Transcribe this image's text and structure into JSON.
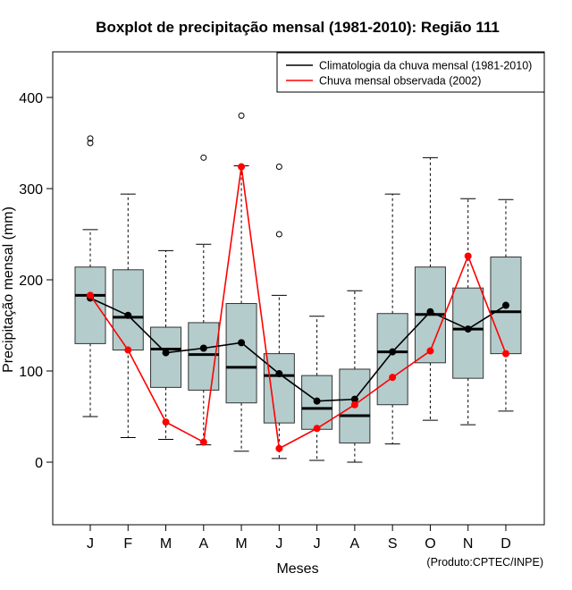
{
  "chart_data": {
    "type": "boxplot",
    "title": "Boxplot de precipitação mensal (1981-2010): Região 111",
    "xlabel": "Meses",
    "ylabel": "Precipitação mensal (mm)",
    "credit": "(Produto:CPTEC/INPE)",
    "ylim": [
      -70,
      450
    ],
    "yticks": [
      0,
      100,
      200,
      300,
      400
    ],
    "categories": [
      "J",
      "F",
      "M",
      "A",
      "M",
      "J",
      "J",
      "A",
      "S",
      "O",
      "N",
      "D"
    ],
    "boxes": [
      {
        "min": 50,
        "q1": 130,
        "median": 183,
        "q3": 214,
        "max": 255,
        "outliers": [
          350,
          355
        ]
      },
      {
        "min": 27,
        "q1": 123,
        "median": 159,
        "q3": 211,
        "max": 294,
        "outliers": []
      },
      {
        "min": 25,
        "q1": 82,
        "median": 124,
        "q3": 148,
        "max": 232,
        "outliers": []
      },
      {
        "min": 19,
        "q1": 79,
        "median": 118,
        "q3": 153,
        "max": 239,
        "outliers": [
          334
        ]
      },
      {
        "min": 12,
        "q1": 65,
        "median": 104,
        "q3": 174,
        "max": 325,
        "outliers": [
          380
        ]
      },
      {
        "min": 4,
        "q1": 43,
        "median": 95,
        "q3": 119,
        "max": 183,
        "outliers": [
          250,
          324
        ]
      },
      {
        "min": 2,
        "q1": 36,
        "median": 59,
        "q3": 95,
        "max": 160,
        "outliers": []
      },
      {
        "min": 0,
        "q1": 21,
        "median": 51,
        "q3": 102,
        "max": 188,
        "outliers": []
      },
      {
        "min": 20,
        "q1": 63,
        "median": 121,
        "q3": 163,
        "max": 294,
        "outliers": []
      },
      {
        "min": 46,
        "q1": 109,
        "median": 162,
        "q3": 214,
        "max": 334,
        "outliers": []
      },
      {
        "min": 41,
        "q1": 92,
        "median": 146,
        "q3": 191,
        "max": 289,
        "outliers": []
      },
      {
        "min": 56,
        "q1": 119,
        "median": 165,
        "q3": 225,
        "max": 288,
        "outliers": []
      }
    ],
    "series": [
      {
        "name": "Climatologia da chuva mensal (1981-2010)",
        "color": "#000000",
        "values": [
          180,
          161,
          120,
          125,
          131,
          97,
          67,
          69,
          121,
          165,
          146,
          172
        ]
      },
      {
        "name": "Chuva mensal observada (2002)",
        "color": "#ff0000",
        "values": [
          183,
          123,
          44,
          22,
          324,
          15,
          37,
          63,
          93,
          122,
          226,
          119
        ]
      }
    ],
    "box_fill": "#b4cccc",
    "legend_position": "top-right"
  }
}
